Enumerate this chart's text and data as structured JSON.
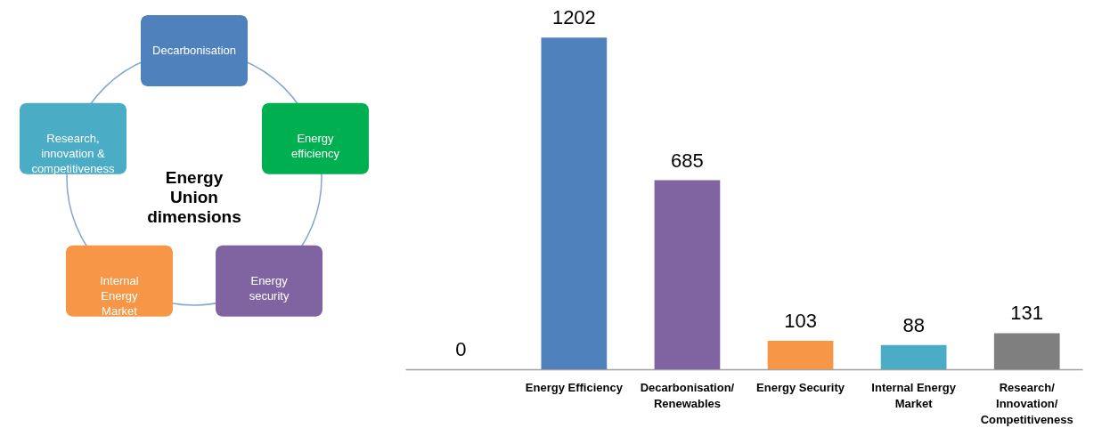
{
  "chart_data": [
    {
      "type": "other",
      "title": "Energy\nUnion\ndimensions",
      "categories": [
        "Decarbonisation",
        "Energy\nefficiency",
        "Energy\nsecurity",
        "Internal\nEnergy\nMarket",
        "Research,\ninnovation &\ncompetitiveness"
      ],
      "colors": [
        "#4f81bd",
        "#00b050",
        "#8064a2",
        "#f79646",
        "#4bacc6"
      ]
    },
    {
      "type": "bar",
      "categories": [
        null,
        "Energy Efficiency",
        "Decarbonisation/\nRenewables",
        "Energy Security",
        "Internal Energy\nMarket",
        "Research/\nInnovation/\nCompetitiveness"
      ],
      "values": [
        0,
        1202,
        685,
        103,
        88,
        131
      ],
      "colors": [
        "#7f7f7f",
        "#4f81bd",
        "#8064a2",
        "#f79646",
        "#4bacc6",
        "#7f7f7f"
      ],
      "data_labels": true
    }
  ]
}
